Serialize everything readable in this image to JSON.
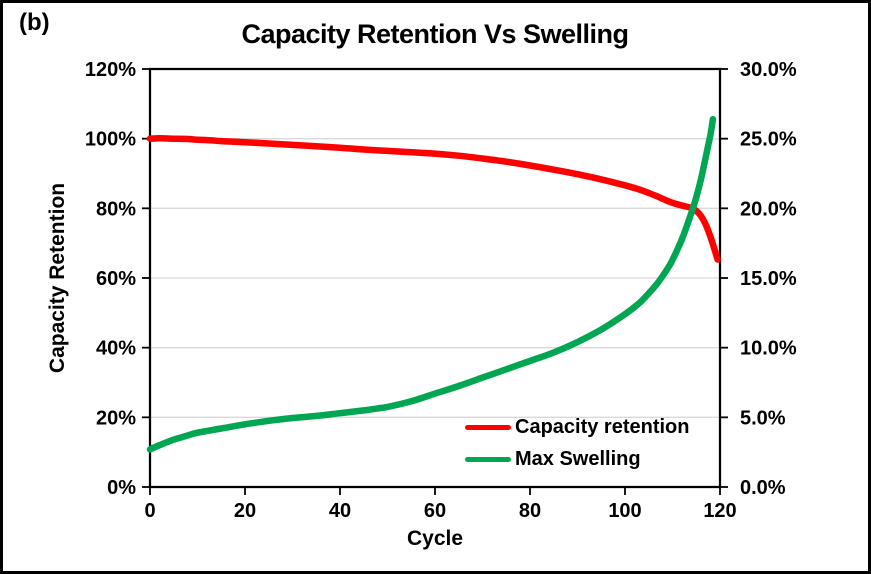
{
  "figure_label": "(b)",
  "title": "Capacity Retention Vs Swelling",
  "axes": {
    "x": {
      "title": "Cycle",
      "range": [
        0,
        120
      ],
      "tick_values": [
        0,
        20,
        40,
        60,
        80,
        100,
        120
      ],
      "tick_labels": [
        "0",
        "20",
        "40",
        "60",
        "80",
        "100",
        "120"
      ]
    },
    "y_left": {
      "title": "Capacity Retention",
      "range": [
        0,
        120
      ],
      "tick_values": [
        0,
        20,
        40,
        60,
        80,
        100,
        120
      ],
      "tick_labels": [
        "0%",
        "20%",
        "40%",
        "60%",
        "80%",
        "100%",
        "120%"
      ]
    },
    "y_right": {
      "range": [
        0,
        30
      ],
      "tick_values": [
        0,
        5,
        10,
        15,
        20,
        25,
        30
      ],
      "tick_labels": [
        "0.0%",
        "5.0%",
        "10.0%",
        "15.0%",
        "20.0%",
        "25.0%",
        "30.0%"
      ]
    }
  },
  "legend": {
    "position": "inside-bottom-right",
    "items": [
      {
        "label": "Capacity retention",
        "color": "#FE0000"
      },
      {
        "label": "Max Swelling",
        "color": "#00A651"
      }
    ]
  },
  "colors": {
    "grid": "#D9D9D9",
    "axis": "#000000",
    "background": "#FFFFFF"
  },
  "chart_data": {
    "type": "line",
    "title": "Capacity Retention Vs Swelling",
    "xlabel": "Cycle",
    "ylabel_left": "Capacity Retention",
    "ylabel_right": "",
    "x_range": [
      0,
      120
    ],
    "y_left_range": [
      0,
      120
    ],
    "y_right_range": [
      0,
      30
    ],
    "grid": "horizontal-only",
    "legend_position": "inside-bottom-right",
    "series": [
      {
        "name": "Capacity retention",
        "slug": "capacity-retention",
        "axis": "left",
        "unit": "% capacity retention (left axis)",
        "color": "#FE0000",
        "points": [
          [
            0,
            100
          ],
          [
            2,
            100.1
          ],
          [
            5,
            100
          ],
          [
            8,
            99.9
          ],
          [
            10,
            99.7
          ],
          [
            13,
            99.5
          ],
          [
            15,
            99.3
          ],
          [
            20,
            99.0
          ],
          [
            25,
            98.6
          ],
          [
            30,
            98.2
          ],
          [
            35,
            97.8
          ],
          [
            40,
            97.4
          ],
          [
            45,
            96.9
          ],
          [
            50,
            96.5
          ],
          [
            55,
            96.1
          ],
          [
            60,
            95.7
          ],
          [
            65,
            95.1
          ],
          [
            70,
            94.3
          ],
          [
            75,
            93.4
          ],
          [
            80,
            92.3
          ],
          [
            85,
            91.1
          ],
          [
            90,
            89.8
          ],
          [
            95,
            88.3
          ],
          [
            100,
            86.6
          ],
          [
            103,
            85.4
          ],
          [
            105,
            84.4
          ],
          [
            107,
            83.3
          ],
          [
            109,
            82.1
          ],
          [
            110,
            81.6
          ],
          [
            112,
            80.8
          ],
          [
            114,
            80.1
          ],
          [
            115,
            79.3
          ],
          [
            116,
            77.8
          ],
          [
            117,
            75.3
          ],
          [
            118,
            71.8
          ],
          [
            119,
            67.5
          ],
          [
            119.5,
            65.3
          ]
        ]
      },
      {
        "name": "Max Swelling",
        "slug": "max-swelling",
        "axis": "right",
        "unit": "% max swelling (right axis)",
        "color": "#00A651",
        "points": [
          [
            0,
            2.7
          ],
          [
            2,
            3.0
          ],
          [
            5,
            3.4
          ],
          [
            8,
            3.7
          ],
          [
            10,
            3.9
          ],
          [
            15,
            4.2
          ],
          [
            20,
            4.5
          ],
          [
            25,
            4.75
          ],
          [
            30,
            4.95
          ],
          [
            35,
            5.1
          ],
          [
            40,
            5.3
          ],
          [
            45,
            5.5
          ],
          [
            50,
            5.75
          ],
          [
            55,
            6.15
          ],
          [
            60,
            6.7
          ],
          [
            65,
            7.25
          ],
          [
            70,
            7.85
          ],
          [
            75,
            8.45
          ],
          [
            80,
            9.05
          ],
          [
            85,
            9.65
          ],
          [
            90,
            10.4
          ],
          [
            95,
            11.3
          ],
          [
            100,
            12.4
          ],
          [
            103,
            13.2
          ],
          [
            105,
            13.9
          ],
          [
            107,
            14.7
          ],
          [
            109,
            15.7
          ],
          [
            110,
            16.3
          ],
          [
            112,
            17.8
          ],
          [
            114,
            19.7
          ],
          [
            115,
            20.8
          ],
          [
            116,
            22.1
          ],
          [
            117,
            23.7
          ],
          [
            118,
            25.3
          ],
          [
            118.5,
            26.4
          ]
        ]
      }
    ]
  }
}
